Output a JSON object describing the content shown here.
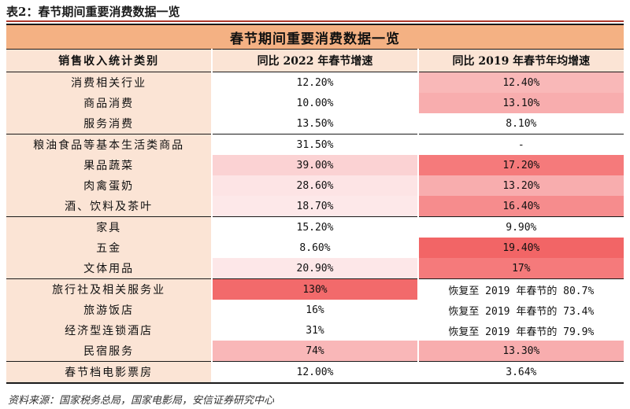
{
  "caption": "表2：春节期间重要消费数据一览",
  "table": {
    "title": "春节期间重要消费数据一览",
    "headers": [
      "销售收入统计类别",
      "同比 2022 年春节增速",
      "同比 2019 年春节年均增速"
    ],
    "rows": [
      {
        "category": "消费相关行业",
        "v2022": "12.20%",
        "v2019": "12.40%",
        "c2022": "#ffffff",
        "c2019": "#f9b8b8"
      },
      {
        "category": "商品消费",
        "v2022": "10.00%",
        "v2019": "13.10%",
        "c2022": "#ffffff",
        "c2019": "#f8adae"
      },
      {
        "category": "服务消费",
        "v2022": "13.50%",
        "v2019": "8.10%",
        "c2022": "#ffffff",
        "c2019": "#ffffff"
      },
      {
        "category": "粮油食品等基本生活类商品",
        "v2022": "31.50%",
        "v2019": "-",
        "c2022": "#ffffff",
        "c2019": "#ffffff"
      },
      {
        "category": "果品蔬菜",
        "v2022": "39.00%",
        "v2019": "17.20%",
        "c2022": "#fbd2d3",
        "c2019": "#f57a7b"
      },
      {
        "category": "肉禽蛋奶",
        "v2022": "28.60%",
        "v2019": "13.20%",
        "c2022": "#fde4e5",
        "c2019": "#f8adae"
      },
      {
        "category": "酒、饮料及茶叶",
        "v2022": "18.70%",
        "v2019": "16.40%",
        "c2022": "#fde8e9",
        "c2019": "#f68c8d"
      },
      {
        "category": "家具",
        "v2022": "15.20%",
        "v2019": "9.90%",
        "c2022": "#ffffff",
        "c2019": "#ffffff"
      },
      {
        "category": "五金",
        "v2022": "8.60%",
        "v2019": "19.40%",
        "c2022": "#ffffff",
        "c2019": "#f26566"
      },
      {
        "category": "文体用品",
        "v2022": "20.90%",
        "v2019": "17%",
        "c2022": "#fde7e8",
        "c2019": "#f57a7b"
      },
      {
        "category": "旅行社及相关服务业",
        "v2022": "130%",
        "v2019": "恢复至 2019 年春节的 80.7%",
        "c2022": "#f26a6b",
        "c2019": "#ffffff"
      },
      {
        "category": "旅游饭店",
        "v2022": "16%",
        "v2019": "恢复至 2019 年春节的 73.4%",
        "c2022": "#ffffff",
        "c2019": "#ffffff"
      },
      {
        "category": "经济型连锁酒店",
        "v2022": "31%",
        "v2019": "恢复至 2019 年春节的 79.9%",
        "c2022": "#ffffff",
        "c2019": "#ffffff"
      },
      {
        "category": "民宿服务",
        "v2022": "74%",
        "v2019": "13.30%",
        "c2022": "#f9b7b8",
        "c2019": "#f8adae"
      },
      {
        "category": "春节档电影票房",
        "v2022": "12.00%",
        "v2019": "3.64%",
        "c2022": "#ffffff",
        "c2019": "#ffffff"
      }
    ]
  },
  "source": "资料来源：国家税务总局，国家电影局，安信证券研究中心"
}
